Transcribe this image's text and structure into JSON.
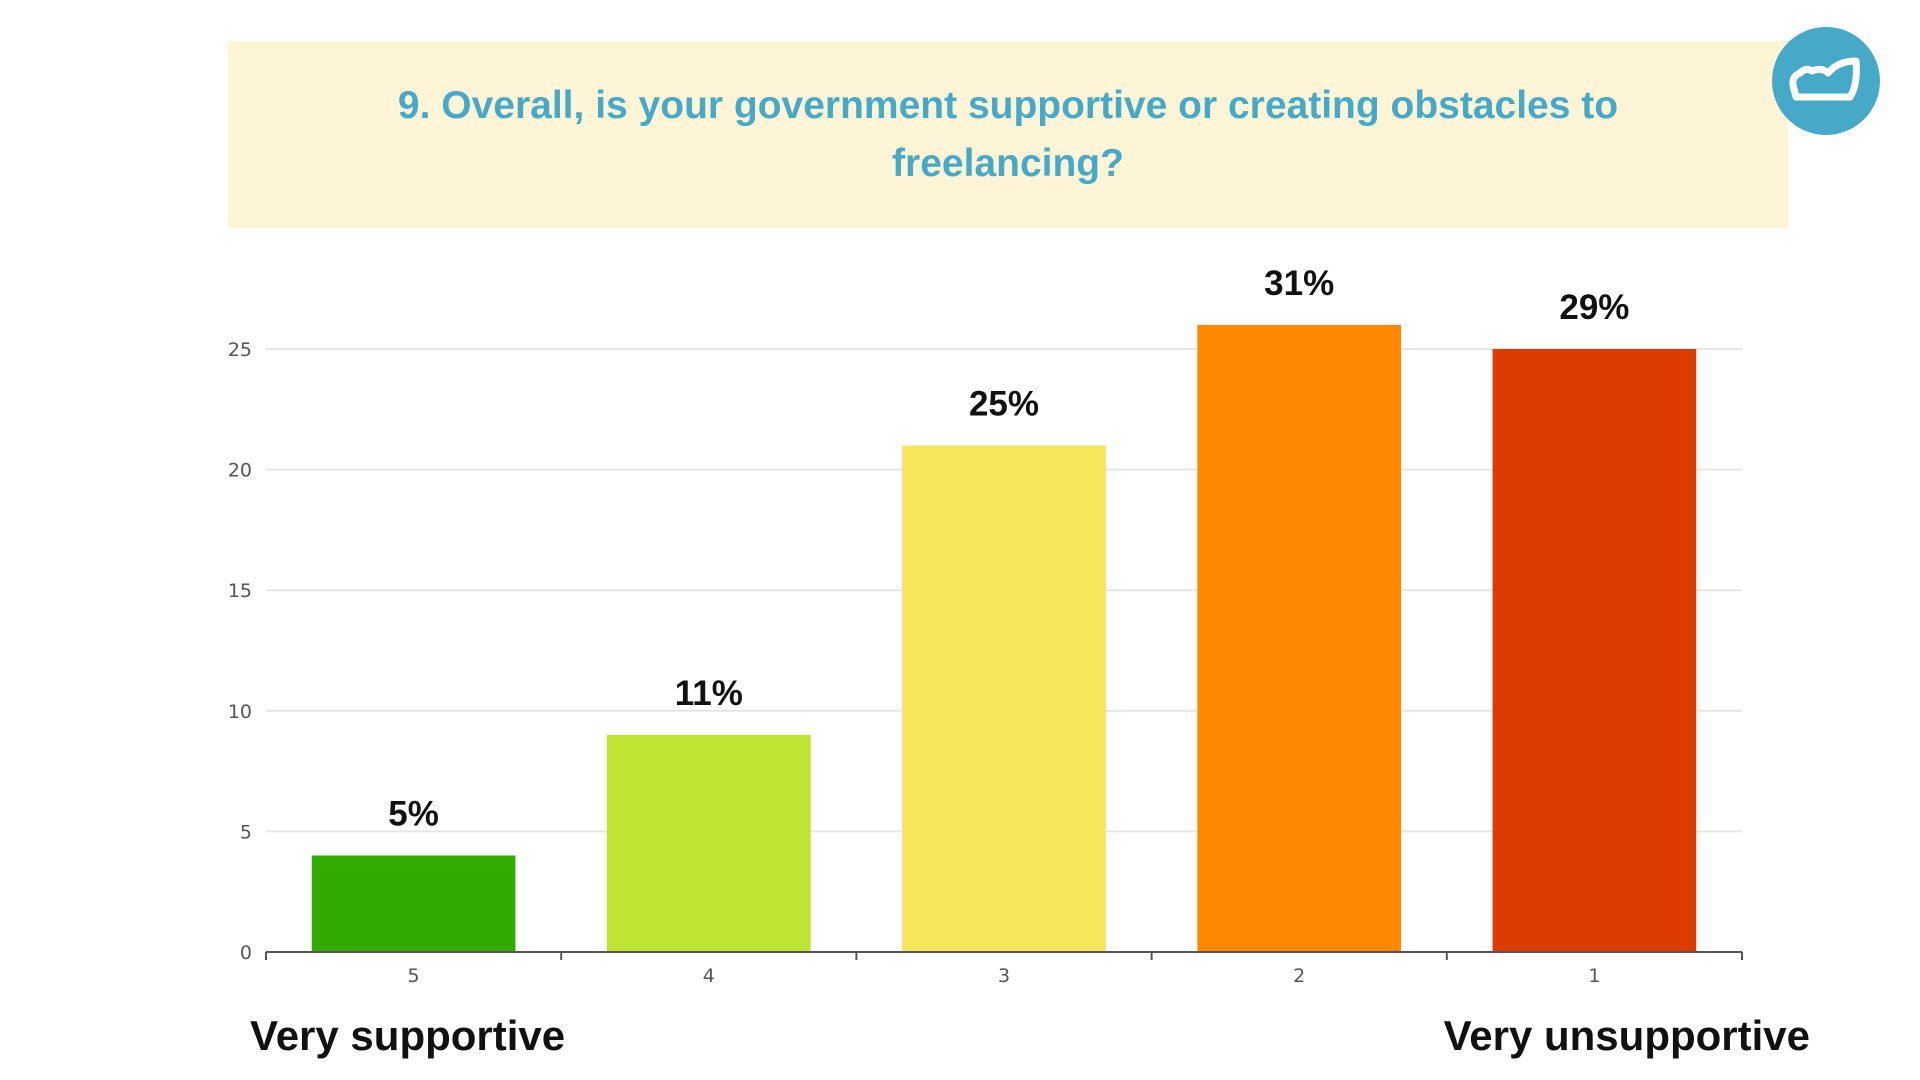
{
  "title": "9. Overall, is your government supportive or creating obstacles to freelancing?",
  "logo": {
    "icon": "cloud-icon",
    "color": "#47a9c8"
  },
  "scale_labels": {
    "left": "Very supportive",
    "right": "Very unsupportive"
  },
  "chart_data": {
    "type": "bar",
    "title": "9. Overall, is your government supportive or creating obstacles to freelancing?",
    "xlabel": "",
    "ylabel": "",
    "categories": [
      "5",
      "4",
      "3",
      "2",
      "1"
    ],
    "values": [
      4,
      9,
      21,
      26,
      25
    ],
    "data_labels": [
      "5%",
      "11%",
      "25%",
      "31%",
      "29%"
    ],
    "colors": [
      "#33aa00",
      "#bde532",
      "#f5e65b",
      "#ff8800",
      "#dd3c00"
    ],
    "ylim": [
      0,
      25
    ],
    "yticks": [
      0,
      5,
      10,
      15,
      20,
      25
    ],
    "grid": true,
    "legend": "none"
  }
}
